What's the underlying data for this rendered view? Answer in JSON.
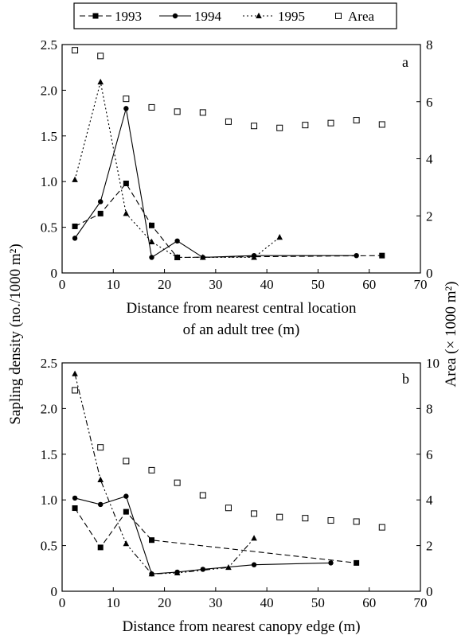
{
  "legend": [
    {
      "name": "1993",
      "key": "s1993"
    },
    {
      "name": "1994",
      "key": "s1994"
    },
    {
      "name": "1995",
      "key": "s1995"
    },
    {
      "name": "Area",
      "key": "area"
    }
  ],
  "shared_ylabel": "Sapling density (no./1000 m²)",
  "shared_y2label": "Area (× 1000 m²)",
  "chart_data": [
    {
      "type": "line",
      "panel": "a",
      "xlabel": [
        "Distance from nearest central location",
        "of an adult tree (m)"
      ],
      "xlim": [
        0,
        70
      ],
      "xticks": [
        0,
        10,
        20,
        30,
        40,
        50,
        60,
        70
      ],
      "ylim": [
        0,
        2.5
      ],
      "yticks": [
        "0",
        "0.5",
        "1.0",
        "1.5",
        "2.0",
        "2.5"
      ],
      "y2lim": [
        0,
        8
      ],
      "y2ticks": [
        0,
        2,
        4,
        6,
        8
      ],
      "series": [
        {
          "name": "1993",
          "axis": "left",
          "x": [
            2.5,
            7.5,
            12.5,
            17.5,
            22.5,
            62.5
          ],
          "y": [
            0.51,
            0.65,
            0.98,
            0.52,
            0.17,
            0.19
          ]
        },
        {
          "name": "1994",
          "axis": "left",
          "x": [
            2.5,
            7.5,
            12.5,
            17.5,
            22.5,
            27.5,
            37.5,
            57.5
          ],
          "y": [
            0.38,
            0.78,
            1.8,
            0.17,
            0.35,
            0.17,
            0.19,
            0.19
          ]
        },
        {
          "name": "1995",
          "axis": "left",
          "x": [
            2.5,
            7.5,
            12.5,
            17.5,
            22.5,
            27.5,
            37.5,
            42.5
          ],
          "y": [
            1.02,
            2.09,
            0.65,
            0.34,
            0.17,
            0.17,
            0.17,
            0.39
          ]
        },
        {
          "name": "Area",
          "axis": "right",
          "x": [
            2.5,
            7.5,
            12.5,
            17.5,
            22.5,
            27.5,
            32.5,
            37.5,
            42.5,
            47.5,
            52.5,
            57.5,
            62.5
          ],
          "y": [
            7.8,
            7.6,
            6.1,
            5.8,
            5.65,
            5.62,
            5.3,
            5.15,
            5.08,
            5.18,
            5.25,
            5.35,
            5.2
          ]
        }
      ]
    },
    {
      "type": "line",
      "panel": "b",
      "xlabel": [
        "Distance from nearest canopy edge (m)"
      ],
      "xlim": [
        0,
        70
      ],
      "xticks": [
        0,
        10,
        20,
        30,
        40,
        50,
        60,
        70
      ],
      "ylim": [
        0,
        2.5
      ],
      "yticks": [
        "0",
        "0.5",
        "1.0",
        "1.5",
        "2.0",
        "2.5"
      ],
      "y2lim": [
        0,
        10
      ],
      "y2ticks": [
        0,
        2,
        4,
        6,
        8,
        10
      ],
      "series": [
        {
          "name": "1993",
          "axis": "left",
          "x": [
            2.5,
            7.5,
            12.5,
            17.5,
            57.5
          ],
          "y": [
            0.91,
            0.48,
            0.87,
            0.56,
            0.31
          ]
        },
        {
          "name": "1994",
          "axis": "left",
          "x": [
            2.5,
            7.5,
            12.5,
            17.5,
            22.5,
            27.5,
            37.5,
            52.5
          ],
          "y": [
            1.02,
            0.95,
            1.04,
            0.19,
            0.21,
            0.24,
            0.29,
            0.31
          ]
        },
        {
          "name": "1995",
          "axis": "left",
          "x": [
            2.5,
            7.5,
            12.5,
            17.5,
            22.5,
            32.5,
            37.5
          ],
          "y": [
            2.38,
            1.22,
            0.52,
            0.19,
            0.2,
            0.26,
            0.58
          ]
        },
        {
          "name": "Area",
          "axis": "right",
          "x": [
            2.5,
            7.5,
            12.5,
            17.5,
            22.5,
            27.5,
            32.5,
            37.5,
            42.5,
            47.5,
            52.5,
            57.5,
            62.5
          ],
          "y": [
            8.8,
            6.3,
            5.7,
            5.3,
            4.75,
            4.2,
            3.65,
            3.4,
            3.25,
            3.2,
            3.1,
            3.05,
            2.8
          ]
        }
      ]
    }
  ]
}
